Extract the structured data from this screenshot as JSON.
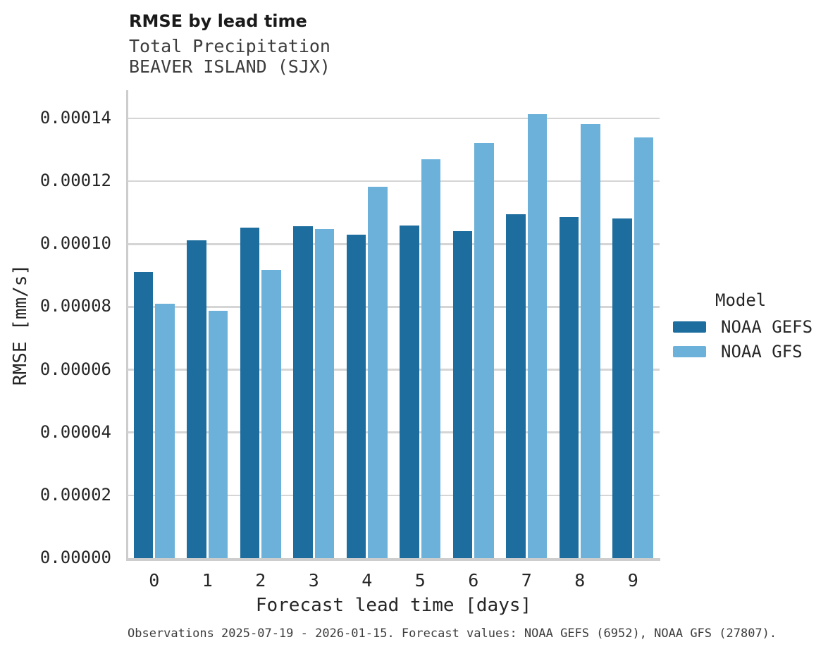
{
  "header": {
    "title": "RMSE by lead time",
    "subtitle_line1": "Total Precipitation",
    "subtitle_line2": "BEAVER ISLAND (SJX)"
  },
  "chart_data": {
    "type": "bar",
    "title": "RMSE by lead time",
    "subtitle": [
      "Total Precipitation",
      "BEAVER ISLAND (SJX)"
    ],
    "xlabel": "Forecast lead time [days]",
    "ylabel": "RMSE [mm/s]",
    "categories": [
      "0",
      "1",
      "2",
      "3",
      "4",
      "5",
      "6",
      "7",
      "8",
      "9"
    ],
    "series": [
      {
        "name": "NOAA GEFS",
        "color": "#1d6e9f",
        "values": [
          9.12e-05,
          0.0001012,
          0.0001053,
          0.0001056,
          0.000103,
          0.0001059,
          0.0001041,
          0.0001094,
          0.0001086,
          0.0001081
        ]
      },
      {
        "name": "NOAA GFS",
        "color": "#6bb1da",
        "values": [
          8.09e-05,
          7.88e-05,
          9.18e-05,
          0.0001047,
          0.0001183,
          0.000127,
          0.0001322,
          0.0001413,
          0.0001383,
          0.0001339
        ]
      }
    ],
    "ylim": [
      0,
      0.000149
    ],
    "ytick_step": 2e-05,
    "ytick_labels": [
      "0.00000",
      "0.00002",
      "0.00004",
      "0.00006",
      "0.00008",
      "0.00010",
      "0.00012",
      "0.00014"
    ],
    "grid": true,
    "legend_title": "Model",
    "legend_position": "right"
  },
  "legend": {
    "title": "Model",
    "items": [
      {
        "label": "NOAA GEFS",
        "color": "#1d6e9f"
      },
      {
        "label": "NOAA GFS",
        "color": "#6bb1da"
      }
    ]
  },
  "footer": {
    "caption": "Observations 2025-07-19 - 2026-01-15. Forecast values: NOAA GEFS (6952), NOAA GFS (27807)."
  },
  "colors": {
    "background": "#ffffff",
    "gridline": "#d5d5d5",
    "spine": "#cdcdcd",
    "text": "#262626",
    "muted_text": "#3d3d3d",
    "gefs_bar": "#1d6e9f",
    "gfs_bar": "#6bb1da"
  }
}
